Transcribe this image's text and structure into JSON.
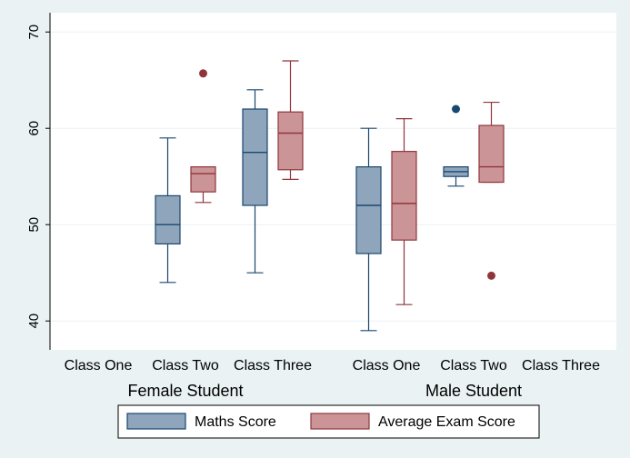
{
  "chart_data": {
    "type": "boxplot",
    "ylim": [
      37,
      72
    ],
    "yticks": [
      40,
      50,
      60,
      70
    ],
    "grid": true,
    "legend_position": "bottom",
    "groups": [
      {
        "label": "Female Student",
        "categories": [
          "Class One",
          "Class Two",
          "Class Three"
        ]
      },
      {
        "label": "Male Student",
        "categories": [
          "Class One",
          "Class Two",
          "Class Three"
        ]
      }
    ],
    "series": [
      {
        "name": "Maths Score",
        "color": "#8fa5bc",
        "stroke": "#1a476f",
        "boxes": [
          null,
          {
            "min": 44,
            "q1": 48,
            "median": 50,
            "q3": 53,
            "max": 59,
            "outliers": []
          },
          {
            "min": 45,
            "q1": 52,
            "median": 57.5,
            "q3": 62,
            "max": 64,
            "outliers": []
          },
          {
            "min": 39,
            "q1": 47,
            "median": 52,
            "q3": 56,
            "max": 60,
            "outliers": []
          },
          {
            "min": 54,
            "q1": 55,
            "median": 55.5,
            "q3": 56,
            "max": 56,
            "outliers": [
              62
            ]
          },
          null
        ]
      },
      {
        "name": "Average Exam Score",
        "color": "#cb9597",
        "stroke": "#90353b",
        "boxes": [
          null,
          {
            "min": 52.3,
            "q1": 53.4,
            "median": 55.3,
            "q3": 56,
            "max": 56,
            "outliers": [
              65.7
            ]
          },
          {
            "min": 54.7,
            "q1": 55.7,
            "median": 59.5,
            "q3": 61.7,
            "max": 67,
            "outliers": []
          },
          {
            "min": 41.7,
            "q1": 48.4,
            "median": 52.2,
            "q3": 57.6,
            "max": 61,
            "outliers": []
          },
          {
            "min": 54.4,
            "q1": 54.4,
            "median": 56,
            "q3": 60.3,
            "max": 62.7,
            "outliers": [
              44.7
            ]
          },
          null
        ]
      }
    ]
  }
}
